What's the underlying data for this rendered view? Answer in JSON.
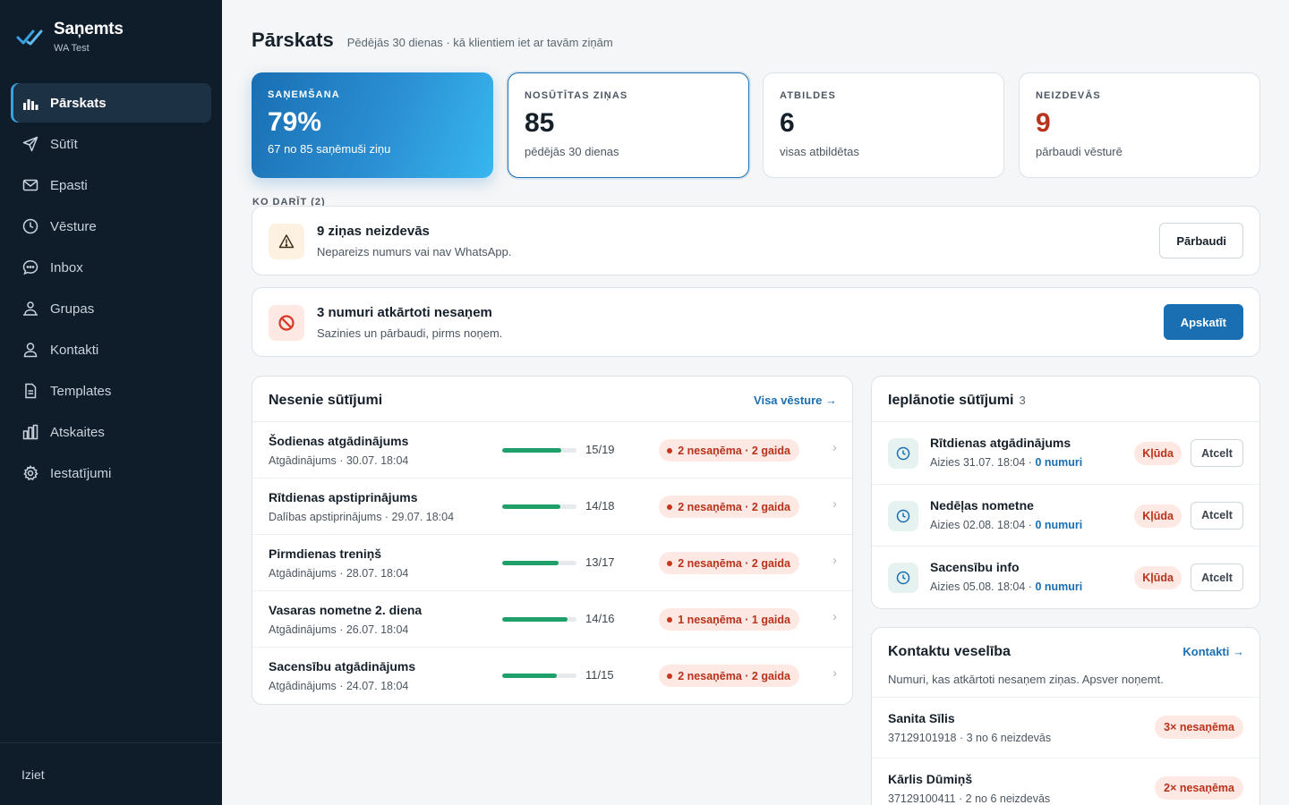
{
  "brand": {
    "name": "Saņemts",
    "sub": "WA Test"
  },
  "nav": [
    {
      "label": "Pārskats",
      "icon": "bar-chart-icon",
      "active": true
    },
    {
      "label": "Sūtīt",
      "icon": "send-icon"
    },
    {
      "label": "Epasti",
      "icon": "mail-icon"
    },
    {
      "label": "Vēsture",
      "icon": "clock-icon"
    },
    {
      "label": "Inbox",
      "icon": "chat-bubble-icon"
    },
    {
      "label": "Grupas",
      "icon": "group-icon"
    },
    {
      "label": "Kontakti",
      "icon": "person-icon"
    },
    {
      "label": "Templates",
      "icon": "document-icon"
    },
    {
      "label": "Atskaites",
      "icon": "chart-columns-icon"
    },
    {
      "label": "Iestatījumi",
      "icon": "gear-icon"
    }
  ],
  "logout": "Iziet",
  "header": {
    "title": "Pārskats",
    "subtitle": "Pēdējās 30 dienas · kā klientiem iet ar tavām ziņām"
  },
  "stats": [
    {
      "label": "SAŅEMŠANA",
      "value": "79%",
      "note": "67 no 85 saņēmuši ziņu"
    },
    {
      "label": "NOSŪTĪTAS ZIŅAS",
      "value": "85",
      "note": "pēdējās 30 dienas"
    },
    {
      "label": "ATBILDES",
      "value": "6",
      "note": "visas atbildētas"
    },
    {
      "label": "NEIZDEVĀS",
      "value": "9",
      "note": "pārbaudi vēsturē"
    }
  ],
  "todo_label": "KO DARĪT (2)",
  "alerts": [
    {
      "title": "9 ziņas neizdevās",
      "desc": "Nepareizs numurs vai nav WhatsApp.",
      "button": "Pārbaudi",
      "icon": "warning-icon"
    },
    {
      "title": "3 numuri atkārtoti nesaņem",
      "desc": "Sazinies un pārbaudi, pirms noņem.",
      "button": "Apskatīt",
      "icon": "blocked-icon"
    }
  ],
  "recent": {
    "title": "Nesenie sūtījumi",
    "link": "Visa vēsture →",
    "rows": [
      {
        "title": "Šodienas atgādinājums",
        "sub": "Atgādinājums · 30.07. 18:04",
        "ratio": "15/19",
        "progress": 0.79,
        "badge": "2 nesaņēma · 2 gaida"
      },
      {
        "title": "Rītdienas apstiprinājums",
        "sub": "Dalības apstiprinājums · 29.07. 18:04",
        "ratio": "14/18",
        "progress": 0.78,
        "badge": "2 nesaņēma · 2 gaida"
      },
      {
        "title": "Pirmdienas treniņš",
        "sub": "Atgādinājums · 28.07. 18:04",
        "ratio": "13/17",
        "progress": 0.76,
        "badge": "2 nesaņēma · 2 gaida"
      },
      {
        "title": "Vasaras nometne 2. diena",
        "sub": "Atgādinājums · 26.07. 18:04",
        "ratio": "14/16",
        "progress": 0.875,
        "badge": "1 nesaņēma · 1 gaida"
      },
      {
        "title": "Sacensību atgādinājums",
        "sub": "Atgādinājums · 24.07. 18:04",
        "ratio": "11/15",
        "progress": 0.73,
        "badge": "2 nesaņēma · 2 gaida"
      }
    ]
  },
  "scheduled": {
    "title": "Ieplānotie sūtījumi",
    "count": "3",
    "rows": [
      {
        "title": "Rītdienas atgādinājums",
        "sub": "Aizies 31.07. 18:04 · ",
        "link": "0 numuri",
        "status": "Kļūda",
        "action": "Atcelt"
      },
      {
        "title": "Nedēļas nometne",
        "sub": "Aizies 02.08. 18:04 · ",
        "link": "0 numuri",
        "status": "Kļūda",
        "action": "Atcelt"
      },
      {
        "title": "Sacensību info",
        "sub": "Aizies 05.08. 18:04 · ",
        "link": "0 numuri",
        "status": "Kļūda",
        "action": "Atcelt"
      }
    ]
  },
  "health": {
    "title": "Kontaktu veselība",
    "link": "Kontakti →",
    "desc": "Numuri, kas atkārtoti nesaņem ziņas. Apsver noņemt.",
    "rows": [
      {
        "name": "Sanita Sīlis",
        "sub": "37129101918 · 3 no 6 neizdevās",
        "badge": "3× nesaņēma"
      },
      {
        "name": "Kārlis Dūmiņš",
        "sub": "37129100411 · 2 no 6 neizdevās",
        "badge": "2× nesaņēma"
      }
    ]
  }
}
